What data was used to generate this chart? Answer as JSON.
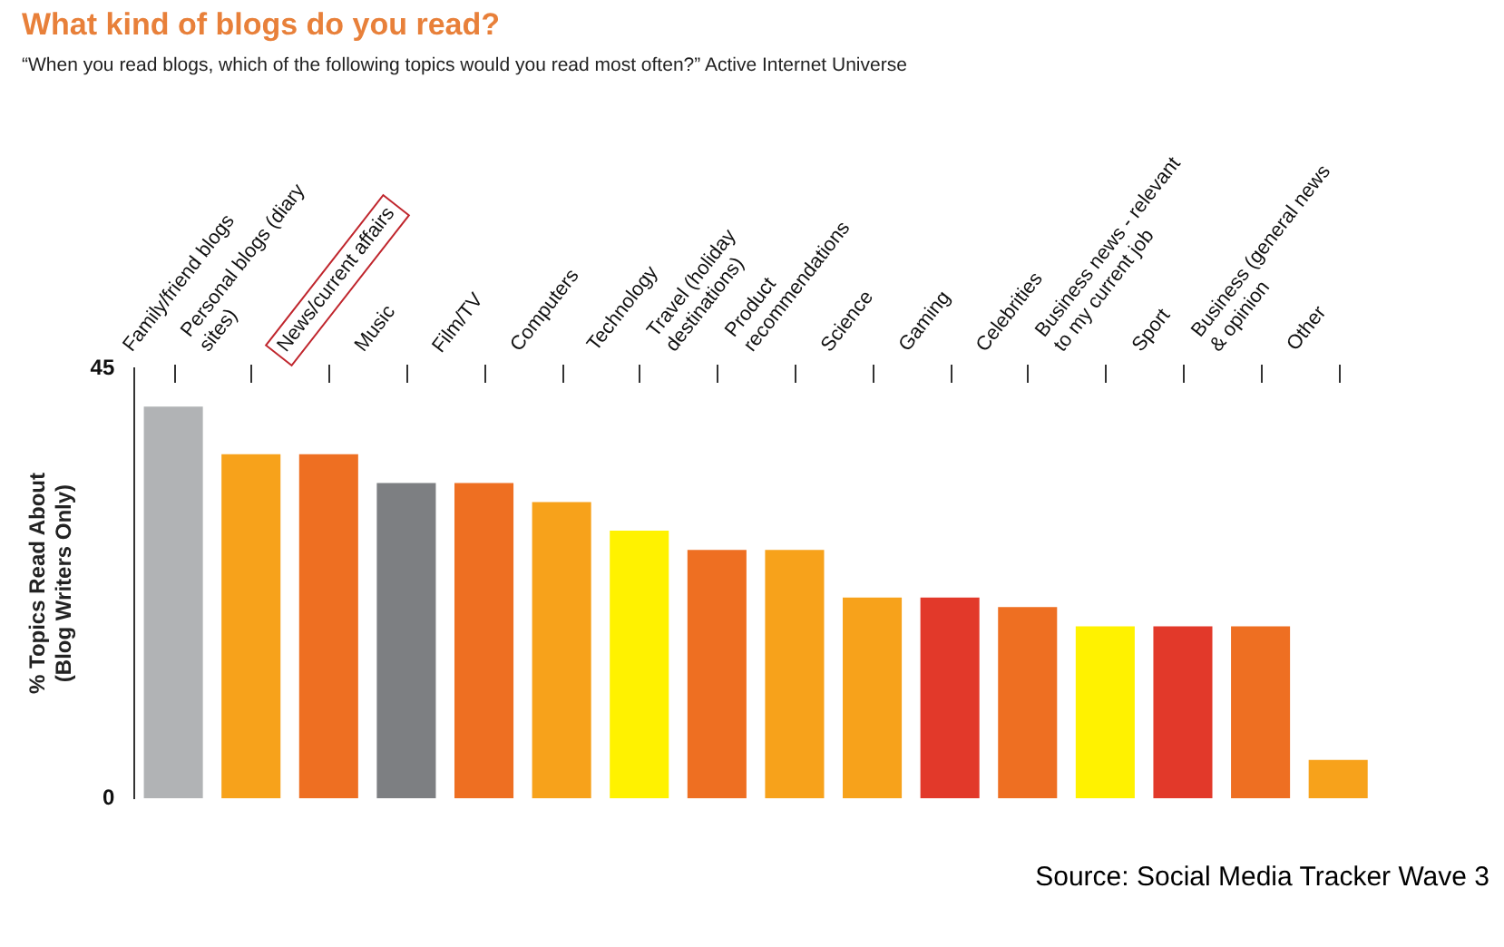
{
  "chart_data": {
    "type": "bar",
    "title": "What kind of blogs do you read?",
    "subtitle": "“When you read blogs, which of the following topics would you read most often?” Active Internet Universe",
    "ylabel": "% Topics Read About\n(Blog Writers Only)",
    "categories": [
      "Family/friend blogs",
      "Personal blogs (diary sites)",
      "News/current affairs",
      "Music",
      "Film/TV",
      "Computers",
      "Technology",
      "Travel (holiday destinations)",
      "Product recommendations",
      "Science",
      "Gaming",
      "Celebrities",
      "Business news - relevant to my current job",
      "Sport",
      "Business (general news & opinion",
      "Other"
    ],
    "values": [
      41,
      36,
      36,
      33,
      33,
      31,
      28,
      26,
      26,
      21,
      21,
      20,
      18,
      18,
      18,
      4
    ],
    "colors": [
      "#b1b3b5",
      "#f7a21b",
      "#ee6f22",
      "#7d7f82",
      "#ee6f22",
      "#f7a21b",
      "#fff200",
      "#ee6f22",
      "#f7a21b",
      "#f7a21b",
      "#e2392a",
      "#ee6f22",
      "#fff200",
      "#e2392a",
      "#ee6f22",
      "#f7a21b"
    ],
    "ylim": [
      0,
      45
    ],
    "yticks": [
      0,
      45
    ],
    "grid": false,
    "legend": false,
    "annotations": [
      "Source: Social Media Tracker Wave 3"
    ]
  }
}
